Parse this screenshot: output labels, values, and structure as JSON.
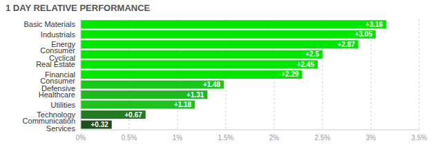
{
  "chart_data": {
    "type": "bar",
    "title": "1 DAY RELATIVE PERFORMANCE",
    "orientation": "horizontal",
    "categories": [
      "Basic Materials",
      "Industrials",
      "Energy",
      "Consumer Cyclical",
      "Real Estate",
      "Financial",
      "Consumer Defensive",
      "Healthcare",
      "Utilities",
      "Technology",
      "Communication Services"
    ],
    "values": [
      3.16,
      3.05,
      2.87,
      2.5,
      2.45,
      2.29,
      1.48,
      1.31,
      1.18,
      0.67,
      0.32
    ],
    "value_labels": [
      "+3.16",
      "+3.05",
      "+2.87",
      "+2.5",
      "+2.45",
      "+2.29",
      "+1.48",
      "+1.31",
      "+1.18",
      "+0.67",
      "+0.32"
    ],
    "colors": [
      "#00e600",
      "#00e600",
      "#00e600",
      "#00e600",
      "#00e600",
      "#00e600",
      "#19c919",
      "#1fb81f",
      "#1fc01f",
      "#237a23",
      "#1f4d1f"
    ],
    "xlim": [
      0,
      3.5
    ],
    "xticks": [
      {
        "value": 0,
        "label": "0%"
      },
      {
        "value": 0.5,
        "label": "0.5%"
      },
      {
        "value": 1,
        "label": "1%"
      },
      {
        "value": 1.5,
        "label": "1.5%"
      },
      {
        "value": 2,
        "label": "2%"
      },
      {
        "value": 2.5,
        "label": "2.5%"
      },
      {
        "value": 3,
        "label": "3%"
      },
      {
        "value": 3.5,
        "label": "3.5%"
      }
    ],
    "grid": true,
    "data_labels": true
  }
}
